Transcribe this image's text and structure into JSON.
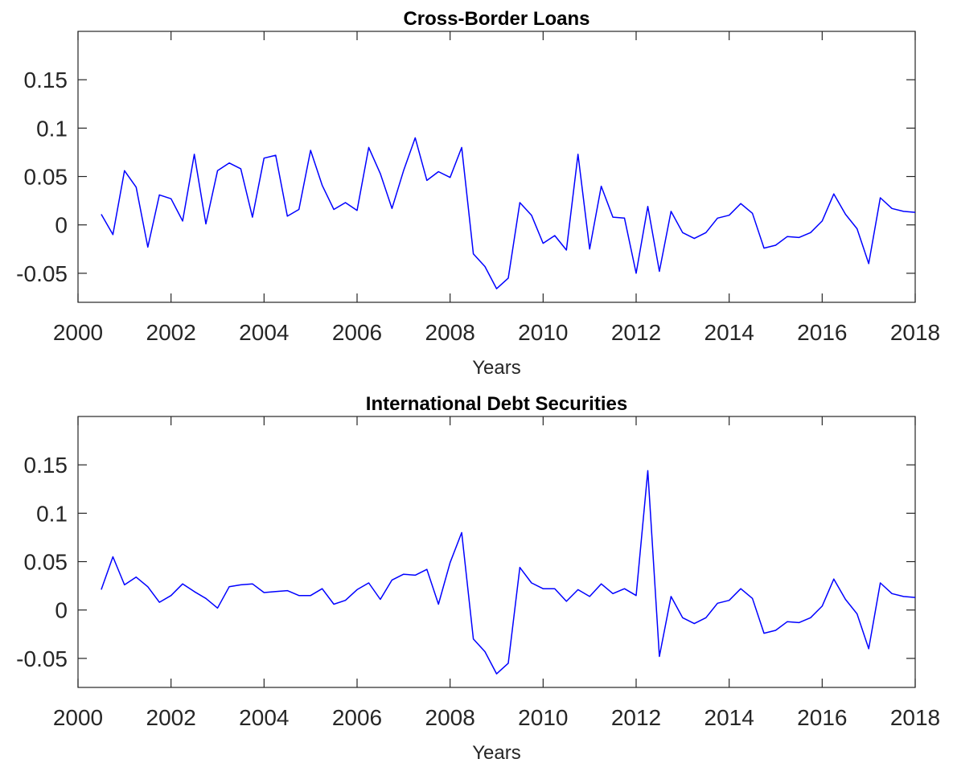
{
  "chart_data": [
    {
      "type": "line",
      "title": "Cross-Border Loans",
      "xlabel": "Years",
      "ylabel": "",
      "xlim": [
        2000,
        2018
      ],
      "ylim": [
        -0.08,
        0.2
      ],
      "xticks": [
        2000,
        2002,
        2004,
        2006,
        2008,
        2010,
        2012,
        2014,
        2016,
        2018
      ],
      "xtick_labels": [
        "2000",
        "2002",
        "2004",
        "2006",
        "2008",
        "2010",
        "2012",
        "2014",
        "2016",
        "2018"
      ],
      "yticks": [
        -0.05,
        0,
        0.05,
        0.1,
        0.15
      ],
      "ytick_labels": [
        "-0.05",
        "0",
        "0.05",
        "0.1",
        "0.15"
      ],
      "grid": false,
      "line_color": "#0000ff",
      "series": [
        {
          "x": [
            2000.5,
            2000.75,
            2001.0,
            2001.25,
            2001.5,
            2001.75,
            2002.0,
            2002.25,
            2002.5,
            2002.75,
            2003.0,
            2003.25,
            2003.5,
            2003.75,
            2004.0,
            2004.25,
            2004.5,
            2004.75,
            2005.0,
            2005.25,
            2005.5,
            2005.75,
            2006.0,
            2006.25,
            2006.5,
            2006.75,
            2007.0,
            2007.25,
            2007.5,
            2007.75,
            2008.0,
            2008.25,
            2008.5,
            2008.75,
            2009.0,
            2009.25,
            2009.5,
            2009.75,
            2010.0,
            2010.25,
            2010.5,
            2010.75,
            2011.0,
            2011.25,
            2011.5,
            2011.75,
            2012.0,
            2012.25,
            2012.5,
            2012.75,
            2013.0,
            2013.25,
            2013.5,
            2013.75,
            2014.0,
            2014.25,
            2014.5,
            2014.75,
            2015.0,
            2015.25,
            2015.5,
            2015.75,
            2016.0,
            2016.25,
            2016.5,
            2016.75,
            2017.0,
            2017.25,
            2017.5,
            2017.75,
            2018.0
          ],
          "y": [
            0.011,
            -0.01,
            0.056,
            0.039,
            -0.023,
            0.031,
            0.027,
            0.004,
            0.073,
            0.001,
            0.056,
            0.064,
            0.058,
            0.008,
            0.069,
            0.072,
            0.009,
            0.016,
            0.077,
            0.041,
            0.016,
            0.023,
            0.015,
            0.08,
            0.053,
            0.017,
            0.056,
            0.09,
            0.046,
            0.055,
            0.049,
            0.08,
            -0.03,
            -0.043,
            -0.066,
            -0.055,
            0.023,
            0.01,
            -0.019,
            -0.011,
            -0.026,
            0.073,
            -0.025,
            0.04,
            0.008,
            0.007,
            -0.05,
            0.019,
            -0.048,
            0.014,
            -0.008,
            -0.014,
            -0.008,
            0.007,
            0.01,
            0.022,
            0.012,
            -0.024,
            -0.021,
            -0.012,
            -0.013,
            -0.008,
            0.004,
            0.032,
            0.011,
            -0.004,
            -0.04,
            0.028,
            0.017,
            0.014,
            0.013
          ]
        }
      ]
    },
    {
      "type": "line",
      "title": "International Debt Securities",
      "xlabel": "Years",
      "ylabel": "",
      "xlim": [
        2000,
        2018
      ],
      "ylim": [
        -0.08,
        0.2
      ],
      "xticks": [
        2000,
        2002,
        2004,
        2006,
        2008,
        2010,
        2012,
        2014,
        2016,
        2018
      ],
      "xtick_labels": [
        "2000",
        "2002",
        "2004",
        "2006",
        "2008",
        "2010",
        "2012",
        "2014",
        "2016",
        "2018"
      ],
      "yticks": [
        -0.05,
        0,
        0.05,
        0.1,
        0.15
      ],
      "ytick_labels": [
        "-0.05",
        "0",
        "0.05",
        "0.1",
        "0.15"
      ],
      "grid": false,
      "line_color": "#0000ff",
      "series": [
        {
          "x": [
            2000.5,
            2000.75,
            2001.0,
            2001.25,
            2001.5,
            2001.75,
            2002.0,
            2002.25,
            2002.5,
            2002.75,
            2003.0,
            2003.25,
            2003.5,
            2003.75,
            2004.0,
            2004.25,
            2004.5,
            2004.75,
            2005.0,
            2005.25,
            2005.5,
            2005.75,
            2006.0,
            2006.25,
            2006.5,
            2006.75,
            2007.0,
            2007.25,
            2007.5,
            2007.75,
            2008.0,
            2008.25,
            2008.5,
            2008.75,
            2009.0,
            2009.25,
            2009.5,
            2009.75,
            2010.0,
            2010.25,
            2010.5,
            2010.75,
            2011.0,
            2011.25,
            2011.5,
            2011.75,
            2012.0,
            2012.25,
            2012.5,
            2012.75,
            2013.0,
            2013.25,
            2013.5,
            2013.75,
            2014.0,
            2014.25,
            2014.5,
            2014.75,
            2015.0,
            2015.25,
            2015.5,
            2015.75,
            2016.0,
            2016.25,
            2016.5,
            2016.75,
            2017.0,
            2017.25,
            2017.5,
            2017.75,
            2018.0
          ],
          "y": [
            0.021,
            0.055,
            0.026,
            0.034,
            0.024,
            0.008,
            0.015,
            0.027,
            0.019,
            0.012,
            0.002,
            0.024,
            0.026,
            0.027,
            0.018,
            0.019,
            0.02,
            0.015,
            0.015,
            0.022,
            0.006,
            0.01,
            0.021,
            0.028,
            0.011,
            0.031,
            0.037,
            0.036,
            0.042,
            0.006,
            0.049,
            0.08,
            -0.03,
            -0.043,
            -0.066,
            -0.055,
            0.044,
            0.028,
            0.022,
            0.022,
            0.009,
            0.021,
            0.014,
            0.027,
            0.017,
            0.022,
            0.015,
            0.144,
            -0.048,
            0.014,
            -0.008,
            -0.014,
            -0.008,
            0.007,
            0.01,
            0.022,
            0.012,
            -0.024,
            -0.021,
            -0.012,
            -0.013,
            -0.008,
            0.004,
            0.032,
            0.011,
            -0.004,
            -0.04,
            0.028,
            0.017,
            0.014,
            0.013
          ]
        }
      ]
    }
  ]
}
